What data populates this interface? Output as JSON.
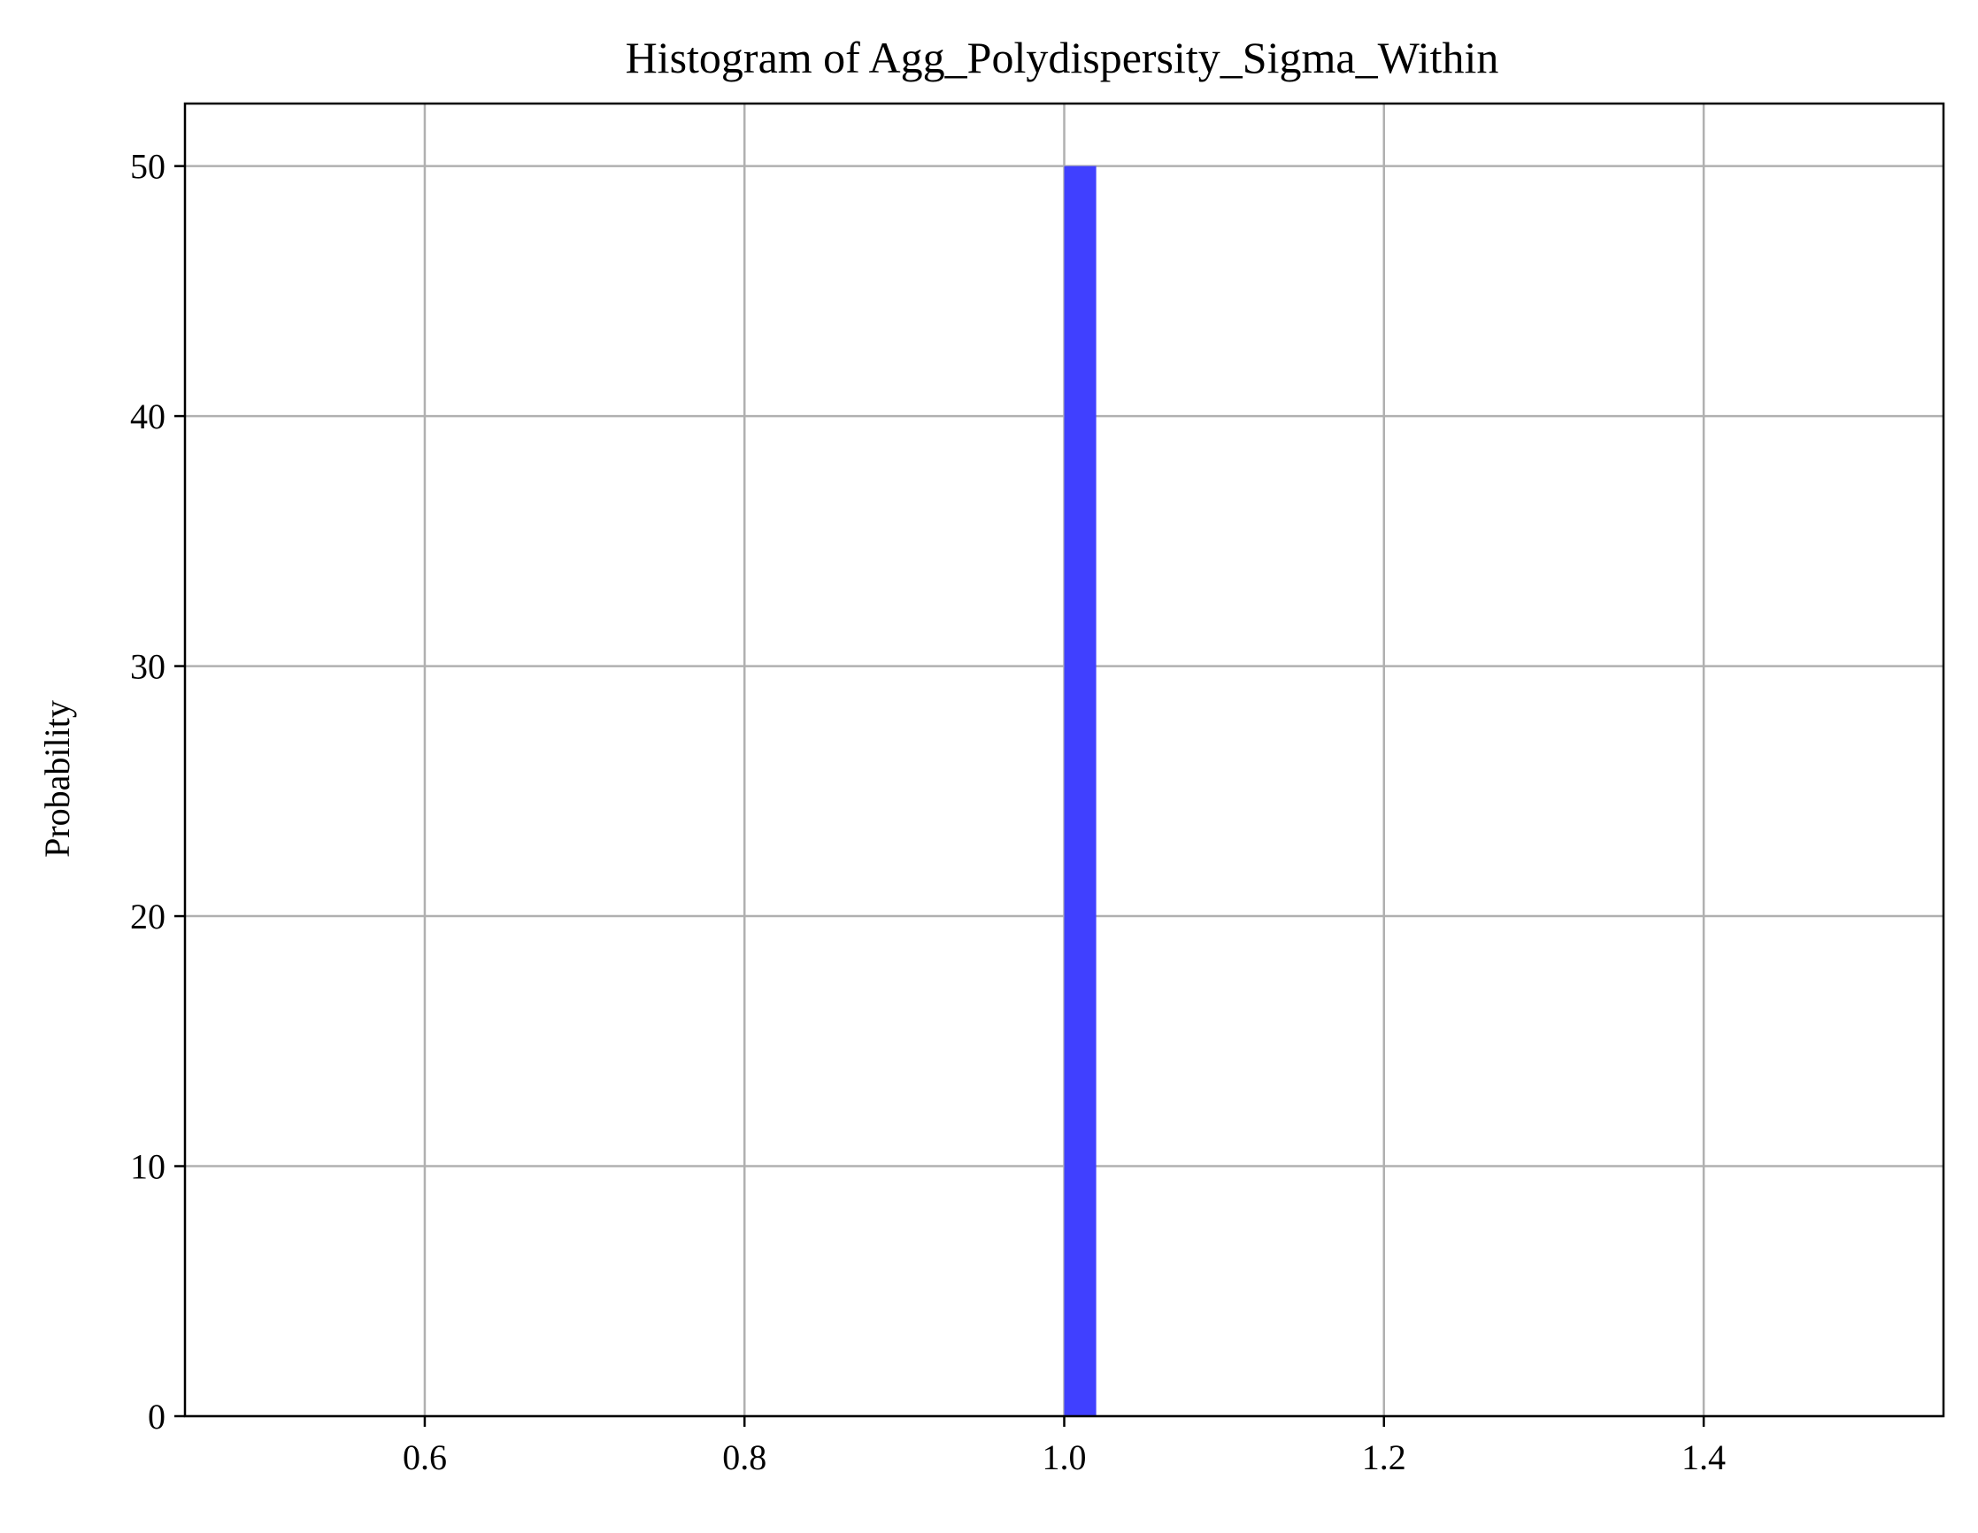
{
  "chart_data": {
    "type": "bar",
    "title": "Histogram of Agg_Polydispersity_Sigma_Within",
    "xlabel": "",
    "ylabel": "Probability",
    "xlim": [
      0.45,
      1.55
    ],
    "ylim": [
      0,
      52.5
    ],
    "x_ticks": [
      {
        "value": 0.6,
        "label": "0.6"
      },
      {
        "value": 0.8,
        "label": "0.8"
      },
      {
        "value": 1.0,
        "label": "1.0"
      },
      {
        "value": 1.2,
        "label": "1.2"
      },
      {
        "value": 1.4,
        "label": "1.4"
      }
    ],
    "y_ticks": [
      {
        "value": 0,
        "label": "0"
      },
      {
        "value": 10,
        "label": "10"
      },
      {
        "value": 20,
        "label": "20"
      },
      {
        "value": 30,
        "label": "30"
      },
      {
        "value": 40,
        "label": "40"
      },
      {
        "value": 50,
        "label": "50"
      }
    ],
    "bins": [
      {
        "x_start": 1.0,
        "x_end": 1.02,
        "value": 50
      }
    ],
    "grid": true,
    "legend": "none",
    "colors": {
      "bar": "#4040ff",
      "grid": "#b0b0b0",
      "axis": "#000000"
    }
  }
}
